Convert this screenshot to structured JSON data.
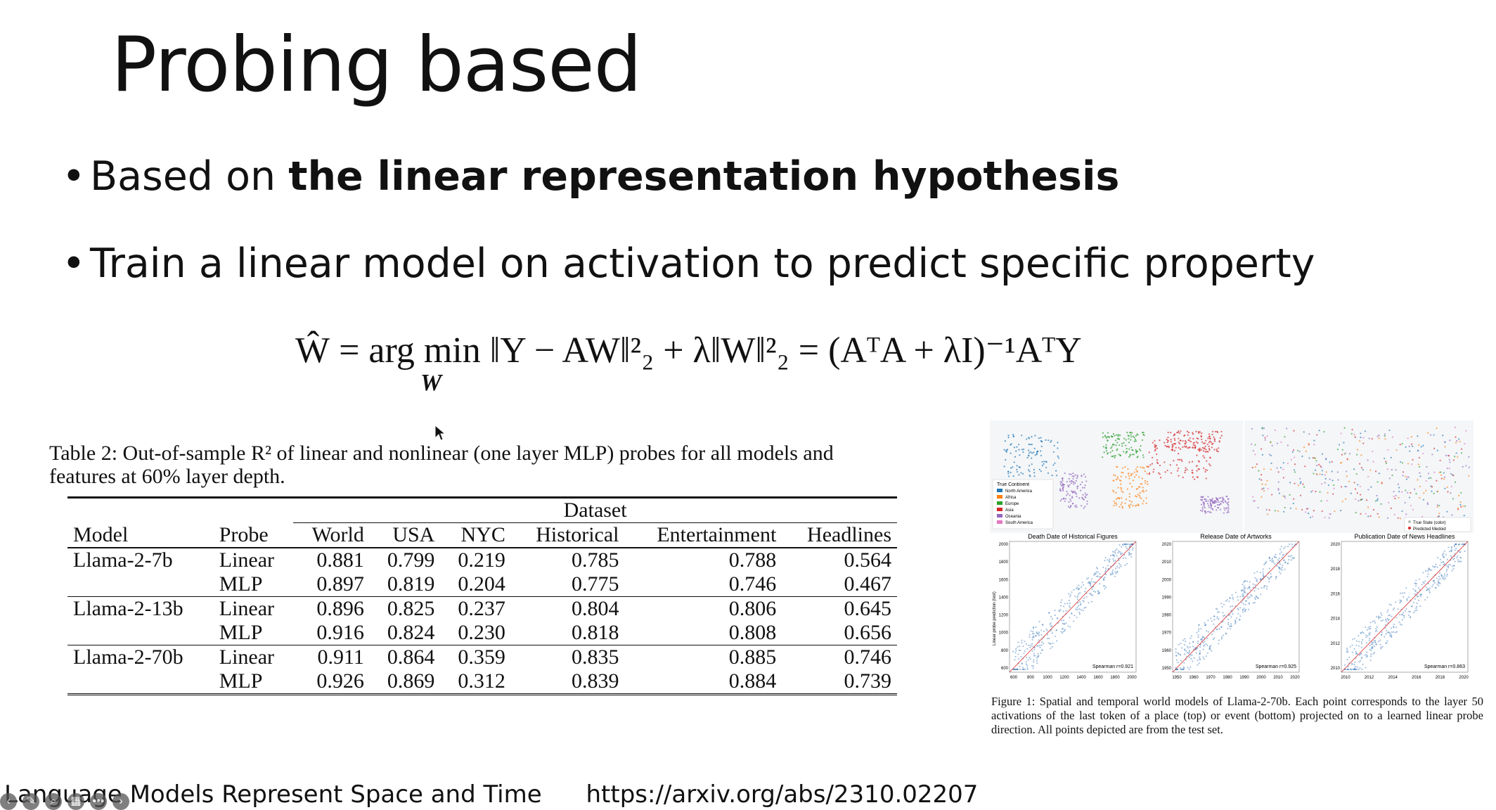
{
  "slide": {
    "title": "Probing based",
    "bullets": [
      {
        "prefix": "Based on ",
        "bold": "the linear representation hypothesis"
      },
      {
        "prefix": "Train a linear model on activation to predict specific property",
        "bold": ""
      }
    ],
    "equation_main": "Ŵ = arg min ‖Y − AW‖²₂ + λ‖W‖²₂ = (AᵀA + λI)⁻¹AᵀY",
    "equation_sub": "W",
    "footer_title": "Language Models Represent Space and Time",
    "footer_url": "https://arxiv.org/abs/2310.02207"
  },
  "table": {
    "caption_line1": "Table 2: Out-of-sample R² of linear and nonlinear (one layer MLP) probes for all models and",
    "caption_line2": "features at 60% layer depth.",
    "group_header": "Dataset",
    "columns": [
      "Model",
      "Probe",
      "World",
      "USA",
      "NYC",
      "Historical",
      "Entertainment",
      "Headlines"
    ],
    "rows": [
      [
        "Llama-2-7b",
        "Linear",
        "0.881",
        "0.799",
        "0.219",
        "0.785",
        "0.788",
        "0.564"
      ],
      [
        "",
        "MLP",
        "0.897",
        "0.819",
        "0.204",
        "0.775",
        "0.746",
        "0.467"
      ],
      [
        "Llama-2-13b",
        "Linear",
        "0.896",
        "0.825",
        "0.237",
        "0.804",
        "0.806",
        "0.645"
      ],
      [
        "",
        "MLP",
        "0.916",
        "0.824",
        "0.230",
        "0.818",
        "0.808",
        "0.656"
      ],
      [
        "Llama-2-70b",
        "Linear",
        "0.911",
        "0.864",
        "0.359",
        "0.835",
        "0.885",
        "0.746"
      ],
      [
        "",
        "MLP",
        "0.926",
        "0.869",
        "0.312",
        "0.839",
        "0.884",
        "0.739"
      ]
    ]
  },
  "figure": {
    "legend_title": "True Continent",
    "legend_items": [
      "North America",
      "Africa",
      "Europe",
      "Asia",
      "Oceania",
      "South America"
    ],
    "legend_colors": [
      "#1f77b4",
      "#ff7f0e",
      "#2ca02c",
      "#d62728",
      "#9467bd",
      "#e377c2"
    ],
    "usa_legend": [
      "True State (color)",
      "Predicted Medoid"
    ],
    "scatter_titles": [
      "Death Date of Historical Figures",
      "Release Date of Artworks",
      "Publication Date of News Headlines"
    ],
    "y_label": "Linear probe prediction (test)",
    "spearman": [
      "Spearman r=0.921",
      "Spearman r=0.925",
      "Spearman r=0.863"
    ],
    "scatter1_yticks": [
      "2000",
      "1800",
      "1600",
      "1400",
      "1200",
      "1000",
      "800",
      "600"
    ],
    "scatter1_xticks": [
      "600",
      "800",
      "1000",
      "1200",
      "1400",
      "1600",
      "1800",
      "2000"
    ],
    "scatter2_yticks": [
      "2020",
      "2010",
      "2000",
      "1990",
      "1980",
      "1970",
      "1960",
      "1950"
    ],
    "scatter2_xticks": [
      "1950",
      "1960",
      "1970",
      "1980",
      "1990",
      "2000",
      "2010",
      "2020"
    ],
    "scatter3_yticks": [
      "2020",
      "2018",
      "2016",
      "2014",
      "2012",
      "2010"
    ],
    "scatter3_xticks": [
      "2010",
      "2012",
      "2014",
      "2016",
      "2018",
      "2020"
    ],
    "caption": "Figure 1: Spatial and temporal world models of Llama-2-70b. Each point corresponds to the layer 50 activations of the last token of a place (top) or event (bottom) projected on to a learned linear probe direction. All points depicted are from the test set."
  }
}
